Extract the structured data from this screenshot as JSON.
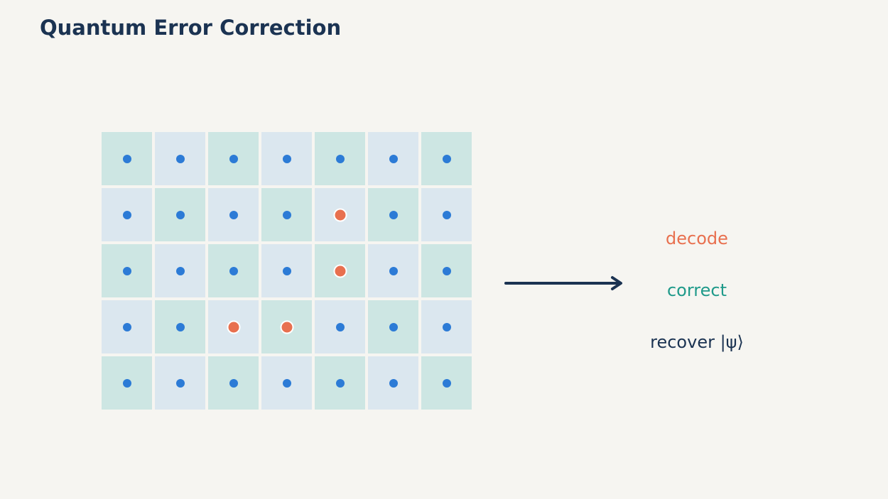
{
  "title": "Quantum Error Correction",
  "colors": {
    "background": "#f6f5f1",
    "cell_teal": "#cde6e3",
    "cell_blue": "#dbe7ef",
    "qubit": "#2c7bd6",
    "error_qubit": "#e8704f",
    "arrow": "#1b3352",
    "decode": "#e8704f",
    "correct": "#1f9a8a",
    "recover": "#1b3352"
  },
  "lattice": {
    "rows": 5,
    "cols": 7,
    "error_qubits": [
      {
        "row": 1,
        "col": 4
      },
      {
        "row": 2,
        "col": 4
      },
      {
        "row": 3,
        "col": 2
      },
      {
        "row": 3,
        "col": 3
      }
    ]
  },
  "steps": [
    {
      "label": "decode",
      "color_key": "decode"
    },
    {
      "label": "correct",
      "color_key": "correct"
    },
    {
      "label": "recover |ψ⟩",
      "color_key": "recover"
    }
  ]
}
